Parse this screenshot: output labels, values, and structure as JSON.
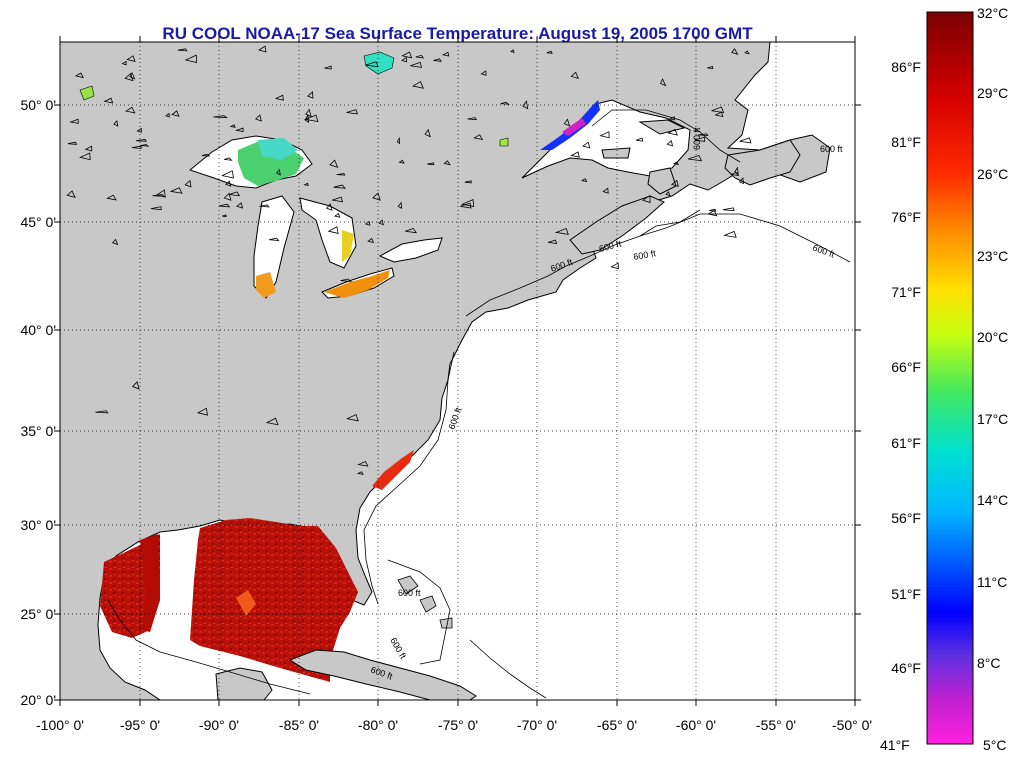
{
  "title": "RU COOL  NOAA-17  Sea Surface Temperature:  August 19, 2005 1700 GMT",
  "map": {
    "lon_range": [
      -100,
      -50
    ],
    "lat_range": [
      20,
      52.4
    ],
    "lat_labels": [
      "20° 0'",
      "25° 0'",
      "30° 0'",
      "35° 0'",
      "40° 0'",
      "45° 0'",
      "50° 0'"
    ],
    "lon_labels": [
      "-100° 0'",
      "-95° 0'",
      "-90° 0'",
      "-85° 0'",
      "-80° 0'",
      "-75° 0'",
      "-70° 0'",
      "-65° 0'",
      "-60° 0'",
      "-55° 0'",
      "-50° 0'"
    ],
    "contour_label": "600 ft",
    "land_color": "#c8c8c8",
    "ocean_color": "#ffffff"
  },
  "colorbar": {
    "celsius_labels": [
      "32°C",
      "29°C",
      "26°C",
      "23°C",
      "20°C",
      "17°C",
      "14°C",
      "11°C",
      "8°C",
      "5°C"
    ],
    "fahrenheit_labels": [
      "86°F",
      "81°F",
      "76°F",
      "71°F",
      "66°F",
      "61°F",
      "56°F",
      "51°F",
      "46°F",
      "41°F"
    ]
  }
}
